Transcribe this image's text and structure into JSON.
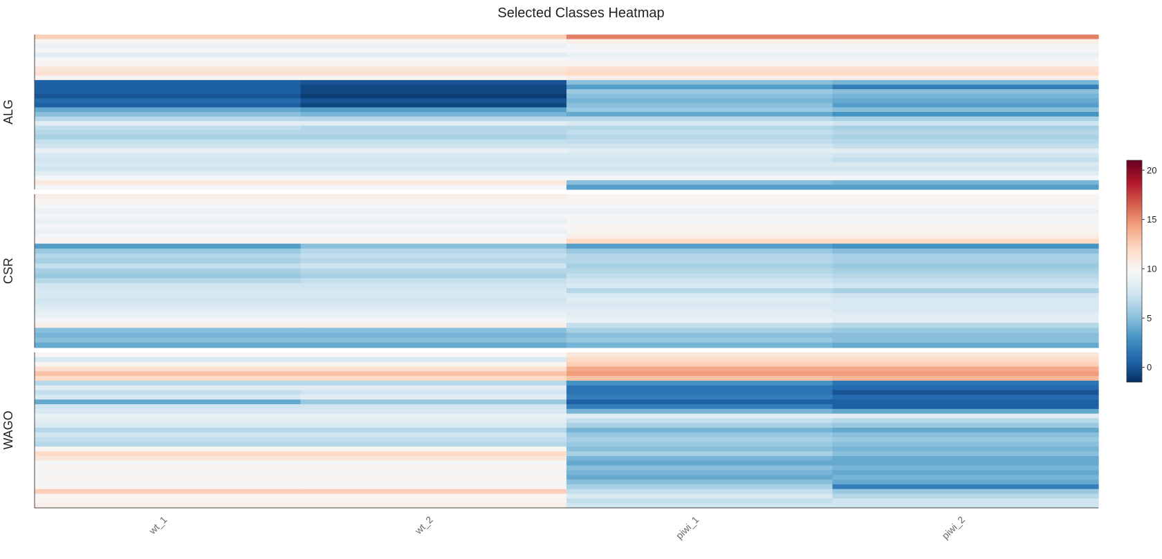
{
  "chart_data": {
    "type": "heatmap",
    "title": "Selected Classes Heatmap",
    "columns": [
      "wt_1",
      "wt_2",
      "piwi_1",
      "piwi_2"
    ],
    "colorbar": {
      "min": -1.5,
      "max": 21,
      "ticks": [
        0,
        5,
        10,
        15,
        20
      ],
      "palette": [
        "#053061",
        "#2166ac",
        "#4393c3",
        "#92c5de",
        "#d1e5f0",
        "#f7f7f7",
        "#fddbc7",
        "#f4a582",
        "#d6604d",
        "#b2182b",
        "#67001f"
      ]
    },
    "panels": [
      {
        "label": "ALG",
        "rows": [
          [
            12.5,
            12.5,
            15.5,
            15.5
          ],
          [
            10,
            10,
            10.5,
            10.5
          ],
          [
            9,
            9,
            9.5,
            9.5
          ],
          [
            9.5,
            9.5,
            9.5,
            9.5
          ],
          [
            8.5,
            8.5,
            9,
            9
          ],
          [
            9.5,
            9.5,
            9.5,
            9.5
          ],
          [
            10,
            10,
            10,
            10
          ],
          [
            11,
            11,
            11.5,
            11.5
          ],
          [
            11.5,
            11.5,
            12,
            12
          ],
          [
            10,
            10,
            10.5,
            10.5
          ],
          [
            0.5,
            0,
            5,
            4.5
          ],
          [
            0.5,
            -0.5,
            3.5,
            2
          ],
          [
            0.5,
            -0.5,
            5.5,
            5
          ],
          [
            0,
            -1,
            5,
            4.5
          ],
          [
            1,
            0,
            4.5,
            4
          ],
          [
            0.5,
            -0.5,
            5,
            3.5
          ],
          [
            4,
            3.5,
            5.5,
            5
          ],
          [
            5,
            4.5,
            4,
            3
          ],
          [
            6.5,
            6.5,
            6.5,
            6
          ],
          [
            8.5,
            8.5,
            8,
            7.5
          ],
          [
            7,
            6.5,
            6.5,
            6
          ],
          [
            6.5,
            6.5,
            7,
            6.5
          ],
          [
            6,
            6,
            6.5,
            6
          ],
          [
            7,
            7,
            7,
            6.5
          ],
          [
            7.5,
            7.5,
            7.5,
            7
          ],
          [
            9,
            9,
            8.5,
            8.5
          ],
          [
            8,
            8,
            8,
            7.5
          ],
          [
            7.5,
            7.5,
            7.5,
            7
          ],
          [
            8,
            8,
            8,
            8
          ],
          [
            7.5,
            7.5,
            7.5,
            7.5
          ],
          [
            8.5,
            8.5,
            8.5,
            8.5
          ],
          [
            9.5,
            9.5,
            9.5,
            9.5
          ],
          [
            11,
            11,
            5,
            4.5
          ],
          [
            9.5,
            9.5,
            3.5,
            3.5
          ]
        ]
      },
      {
        "label": "CSR",
        "rows": [
          [
            10.5,
            10.5,
            10,
            10
          ],
          [
            10,
            10,
            10,
            10
          ],
          [
            9.5,
            9.5,
            9.5,
            9.5
          ],
          [
            9,
            9,
            9,
            9
          ],
          [
            9.5,
            9.5,
            9.5,
            9.5
          ],
          [
            9,
            9,
            9.5,
            9.5
          ],
          [
            9.5,
            9.5,
            10,
            10
          ],
          [
            9,
            9,
            10,
            10
          ],
          [
            9.5,
            9.5,
            10.5,
            10.5
          ],
          [
            10,
            10,
            12,
            12
          ],
          [
            3.5,
            5,
            3.5,
            3
          ],
          [
            5.5,
            6.5,
            5.5,
            5
          ],
          [
            6.5,
            7,
            6.5,
            6
          ],
          [
            6,
            6.5,
            6.5,
            6
          ],
          [
            7,
            7.5,
            6,
            5.5
          ],
          [
            6,
            6.5,
            6.5,
            6
          ],
          [
            5.5,
            6,
            7,
            6.5
          ],
          [
            6.5,
            7,
            7.5,
            7
          ],
          [
            7.5,
            7.5,
            8,
            7.5
          ],
          [
            8,
            8,
            6.5,
            6
          ],
          [
            8,
            8,
            8,
            7.5
          ],
          [
            7.5,
            7.5,
            8.5,
            8
          ],
          [
            8,
            8,
            8,
            8
          ],
          [
            8.5,
            8.5,
            8.5,
            8
          ],
          [
            9,
            9,
            8.5,
            8.5
          ],
          [
            9.5,
            9.5,
            9,
            8.5
          ],
          [
            10.5,
            10.5,
            7,
            6.5
          ],
          [
            5,
            5,
            6,
            5.5
          ],
          [
            4.5,
            4.5,
            5,
            5
          ],
          [
            5,
            5,
            5.5,
            5
          ],
          [
            4,
            4,
            4.5,
            4
          ]
        ]
      },
      {
        "label": "WAGO",
        "rows": [
          [
            10,
            10,
            11,
            11
          ],
          [
            8,
            8,
            12,
            12
          ],
          [
            10,
            10,
            12.5,
            12.5
          ],
          [
            11.5,
            11.5,
            14,
            14
          ],
          [
            13,
            13,
            14.5,
            14.5
          ],
          [
            12,
            12,
            13,
            13.5
          ],
          [
            6.5,
            6.5,
            3,
            1.5
          ],
          [
            8.5,
            8.5,
            1.5,
            1
          ],
          [
            7,
            7.5,
            1.5,
            0
          ],
          [
            8,
            8.5,
            2,
            1
          ],
          [
            4,
            5.5,
            0.5,
            0.5
          ],
          [
            7.5,
            7.5,
            2,
            0.5
          ],
          [
            8,
            8,
            4.5,
            4
          ],
          [
            9,
            9,
            8.5,
            8.5
          ],
          [
            8.5,
            8.5,
            7,
            6.5
          ],
          [
            8,
            8,
            6,
            5.5
          ],
          [
            6.5,
            6.5,
            4.5,
            4
          ],
          [
            7.5,
            7.5,
            5.5,
            5
          ],
          [
            7,
            7,
            6,
            5.5
          ],
          [
            6.5,
            6.5,
            5.5,
            5
          ],
          [
            10,
            10,
            5,
            4.5
          ],
          [
            12,
            12,
            6,
            5
          ],
          [
            11,
            11,
            4.5,
            4
          ],
          [
            9.5,
            9.5,
            4,
            4
          ],
          [
            10,
            10,
            5,
            4.5
          ],
          [
            9.5,
            9.5,
            4.5,
            4
          ],
          [
            10,
            10,
            4,
            4.5
          ],
          [
            9.5,
            9.5,
            5,
            4
          ],
          [
            10,
            10,
            6,
            2
          ],
          [
            12.5,
            12.5,
            7,
            5.5
          ],
          [
            10,
            10,
            8,
            6.5
          ],
          [
            10,
            10,
            7,
            7.5
          ],
          [
            10.5,
            10.5,
            7.5,
            7.5
          ]
        ]
      }
    ]
  }
}
